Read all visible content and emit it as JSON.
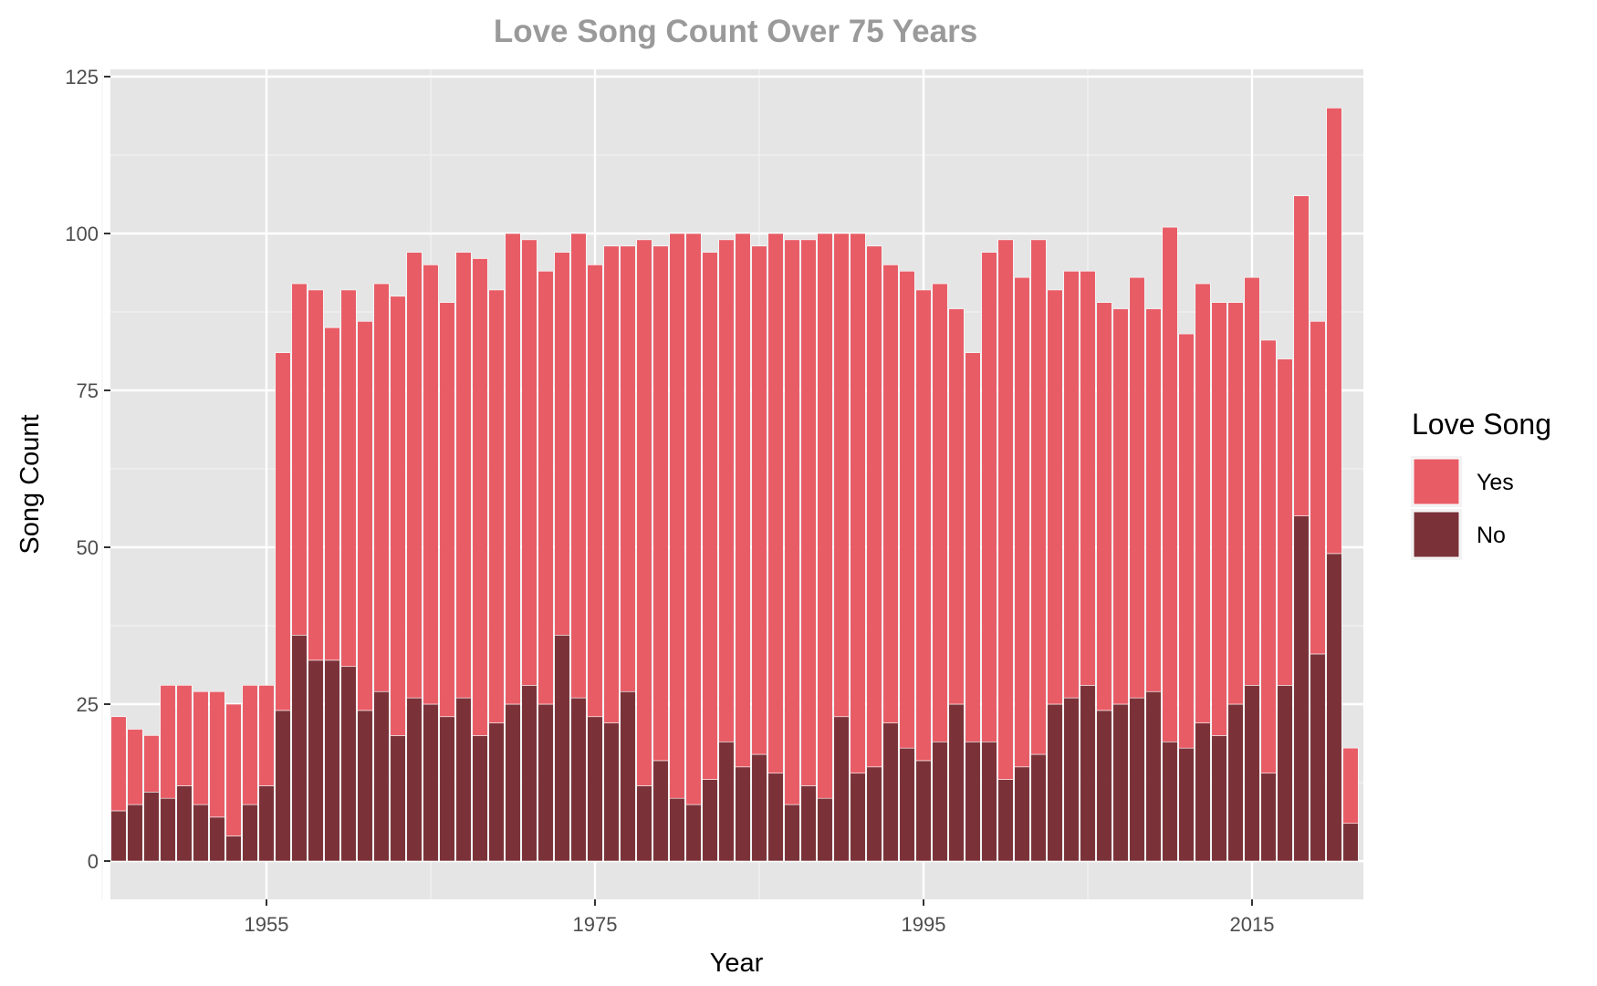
{
  "chart_data": {
    "type": "bar",
    "stacked": true,
    "title": "Love Song Count Over 75 Years",
    "xlabel": "Year",
    "ylabel": "Song Count",
    "xlim": [
      1946,
      2022
    ],
    "ylim": [
      0,
      125
    ],
    "x_ticks": [
      "1955",
      "1975",
      "1995",
      "2015"
    ],
    "y_ticks": [
      "0",
      "25",
      "50",
      "75",
      "100",
      "125"
    ],
    "grid": true,
    "legend": {
      "title": "Love Song",
      "position": "right",
      "entries": [
        {
          "label": "Yes",
          "color": "#e85c66"
        },
        {
          "label": "No",
          "color": "#7a3238"
        }
      ]
    },
    "panel_background": "#e5e5e5",
    "x": [
      1946,
      1947,
      1948,
      1949,
      1950,
      1951,
      1952,
      1953,
      1954,
      1955,
      1956,
      1957,
      1958,
      1959,
      1960,
      1961,
      1962,
      1963,
      1964,
      1965,
      1966,
      1967,
      1968,
      1969,
      1970,
      1971,
      1972,
      1973,
      1974,
      1975,
      1976,
      1977,
      1978,
      1979,
      1980,
      1981,
      1982,
      1983,
      1984,
      1985,
      1986,
      1987,
      1988,
      1989,
      1990,
      1991,
      1992,
      1993,
      1994,
      1995,
      1996,
      1997,
      1998,
      1999,
      2000,
      2001,
      2002,
      2003,
      2004,
      2005,
      2006,
      2007,
      2008,
      2009,
      2010,
      2011,
      2012,
      2013,
      2014,
      2015,
      2016,
      2017,
      2018,
      2019,
      2020,
      2021
    ],
    "series": [
      {
        "name": "No",
        "values": [
          8,
          9,
          11,
          10,
          12,
          9,
          7,
          4,
          9,
          12,
          24,
          36,
          32,
          32,
          31,
          24,
          27,
          20,
          26,
          25,
          23,
          26,
          20,
          22,
          25,
          28,
          25,
          36,
          26,
          23,
          22,
          27,
          12,
          16,
          10,
          9,
          13,
          19,
          15,
          17,
          14,
          9,
          12,
          10,
          23,
          14,
          15,
          22,
          18,
          16,
          19,
          25,
          19,
          19,
          13,
          15,
          17,
          25,
          26,
          28,
          24,
          25,
          26,
          27,
          19,
          18,
          22,
          20,
          25,
          28,
          14,
          28,
          55,
          33,
          49,
          6
        ]
      },
      {
        "name": "Yes",
        "values": [
          15,
          12,
          9,
          18,
          16,
          18,
          20,
          21,
          19,
          16,
          57,
          56,
          59,
          53,
          60,
          62,
          65,
          70,
          71,
          70,
          66,
          71,
          76,
          69,
          75,
          71,
          69,
          61,
          74,
          72,
          76,
          71,
          87,
          82,
          90,
          91,
          84,
          80,
          85,
          81,
          86,
          90,
          87,
          90,
          77,
          86,
          83,
          73,
          76,
          75,
          73,
          63,
          62,
          78,
          86,
          78,
          82,
          66,
          68,
          66,
          65,
          63,
          67,
          61,
          82,
          66,
          70,
          69,
          64,
          65,
          69,
          52,
          51,
          53,
          71,
          12
        ]
      }
    ]
  }
}
